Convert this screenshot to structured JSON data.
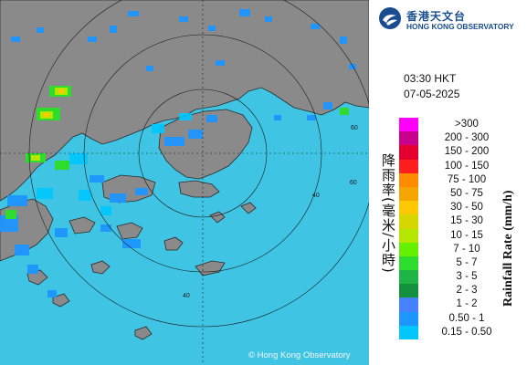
{
  "header": {
    "org_name_cn": "香港天文台",
    "org_name_en": "HONG KONG OBSERVATORY",
    "time": "03:30 HKT",
    "date": "07-05-2025"
  },
  "map": {
    "copyright": "© Hong Kong Observatory",
    "range_ring_labels": [
      "60",
      "60",
      "40",
      "40"
    ],
    "sea_color": "#3fc4e4",
    "land_color": "#8a8a8a"
  },
  "legend": {
    "title_en": "Rainfall Rate (mm/h)",
    "title_cn": "降雨率(毫米/小時)",
    "items": [
      {
        "label": ">300",
        "color": "#ff00ff"
      },
      {
        "label": "200 - 300",
        "color": "#c8008c"
      },
      {
        "label": "150 - 200",
        "color": "#e60032"
      },
      {
        "label": "100 - 150",
        "color": "#ff1e1e"
      },
      {
        "label": "75 - 100",
        "color": "#ff8c00"
      },
      {
        "label": "50 - 75",
        "color": "#f5a500"
      },
      {
        "label": "30 - 50",
        "color": "#ffc800"
      },
      {
        "label": "15 - 30",
        "color": "#d7d700"
      },
      {
        "label": "10 - 15",
        "color": "#b4e600"
      },
      {
        "label": "7 - 10",
        "color": "#64f000"
      },
      {
        "label": "5 - 7",
        "color": "#2ddc2d"
      },
      {
        "label": "3 - 5",
        "color": "#1eb446"
      },
      {
        "label": "2 - 3",
        "color": "#14913c"
      },
      {
        "label": "1 - 2",
        "color": "#4682ff"
      },
      {
        "label": "0.50 - 1",
        "color": "#1e96ff"
      },
      {
        "label": "0.15 - 0.50",
        "color": "#00c8ff"
      }
    ]
  }
}
